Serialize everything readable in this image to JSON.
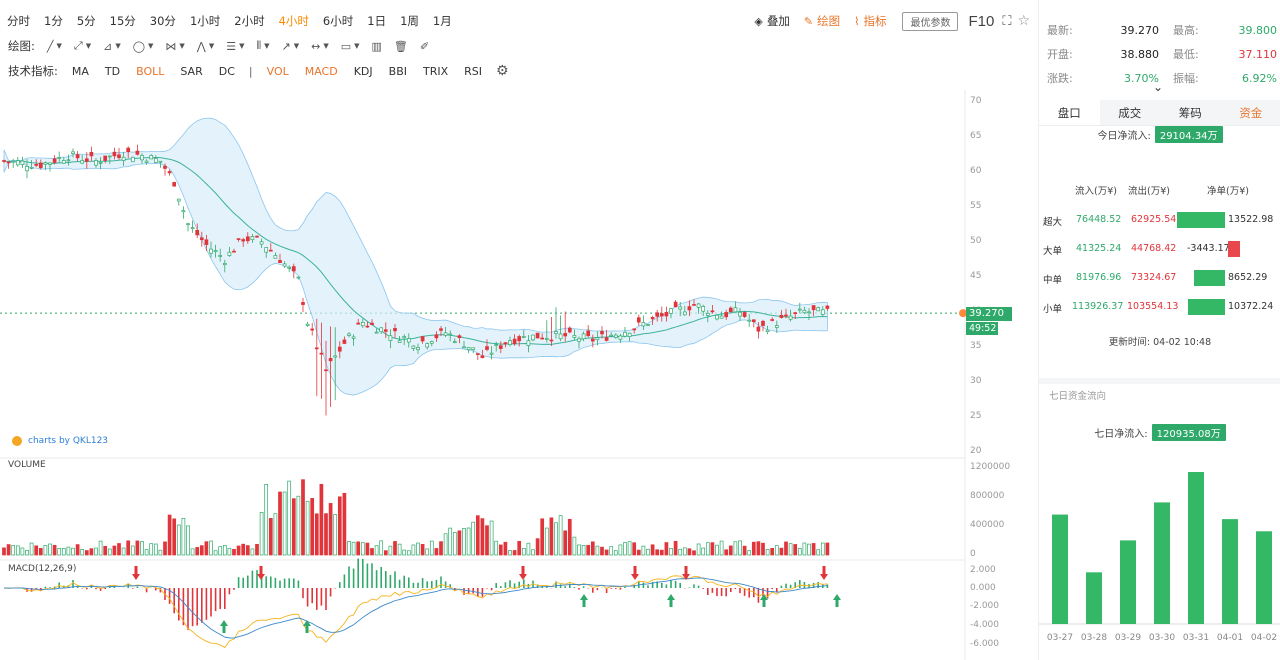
{
  "toolbar": {
    "periods": [
      "分时",
      "1分",
      "5分",
      "15分",
      "30分",
      "1小时",
      "2小时",
      "4小时",
      "6小时",
      "1日",
      "1周",
      "1月"
    ],
    "active_period": "4小时",
    "overlay": "叠加",
    "draw": "绘图",
    "indicators": "指标",
    "optimize": "最优参数",
    "f10": "F10"
  },
  "draw_toolbar": {
    "label": "绘图:"
  },
  "indicator_bar": {
    "label": "技术指标:",
    "items": [
      "MA",
      "TD",
      "BOLL",
      "SAR",
      "DC",
      "VOL",
      "MACD",
      "KDJ",
      "BBI",
      "TRIX",
      "RSI"
    ],
    "active": [
      "BOLL",
      "VOL",
      "MACD"
    ],
    "separator": "|"
  },
  "main_chart": {
    "y_ticks": [
      "70",
      "65",
      "60",
      "55",
      "50",
      "45",
      "40",
      "35",
      "30",
      "25",
      "20"
    ],
    "watermark": "charts by QKL123",
    "last_price": "39.270",
    "countdown": "49:52",
    "colors": {
      "up": "#2ea96a",
      "down": "#e0353a",
      "ma": "#3bb39b",
      "band": "#d8ecfa",
      "band_line": "#8cc6ee"
    }
  },
  "volume_chart": {
    "label": "VOLUME",
    "y_ticks": [
      "1200000",
      "800000",
      "400000",
      "0"
    ]
  },
  "macd_chart": {
    "label": "MACD(12,26,9)",
    "y_ticks": [
      "2.000",
      "0.000",
      "-2.000",
      "-4.000",
      "-6.000"
    ]
  },
  "quote": {
    "latest_label": "最新:",
    "latest": "39.270",
    "high_label": "最高:",
    "high": "39.800",
    "open_label": "开盘:",
    "open": "38.880",
    "low_label": "最低:",
    "low": "37.110",
    "change_label": "涨跌:",
    "change": "3.70%",
    "amplitude_label": "振幅:",
    "amplitude": "6.92%"
  },
  "tabs": [
    "盘口",
    "成交",
    "筹码",
    "资金"
  ],
  "today_flow": {
    "label": "今日净流入:",
    "value": "29104.34万"
  },
  "flow_table": {
    "headers": [
      "流入(万¥)",
      "流出(万¥)",
      "净单(万¥)"
    ],
    "rows": [
      {
        "name": "超大",
        "inflow": "76448.52",
        "outflow": "62925.54",
        "net": "13522.98",
        "net_value": 13522.98
      },
      {
        "name": "大单",
        "inflow": "41325.24",
        "outflow": "44768.42",
        "net": "-3443.17",
        "net_value": -3443.17
      },
      {
        "name": "中单",
        "inflow": "81976.96",
        "outflow": "73324.67",
        "net": "8652.29",
        "net_value": 8652.29
      },
      {
        "name": "小单",
        "inflow": "113926.37",
        "outflow": "103554.13",
        "net": "10372.24",
        "net_value": 10372.24
      }
    ]
  },
  "update_time": {
    "label": "更新时间:",
    "value": "04-02 10:48"
  },
  "seven_day": {
    "title": "七日资金流向",
    "net_label": "七日净流入:",
    "net_value": "120935.08万",
    "chart_data": {
      "type": "bar",
      "categories": [
        "03-27",
        "03-28",
        "03-29",
        "03-30",
        "03-31",
        "04-01",
        "04-02"
      ],
      "values": [
        0.72,
        0.34,
        0.55,
        0.8,
        1.0,
        0.69,
        0.61
      ],
      "color": "#35b865"
    }
  }
}
